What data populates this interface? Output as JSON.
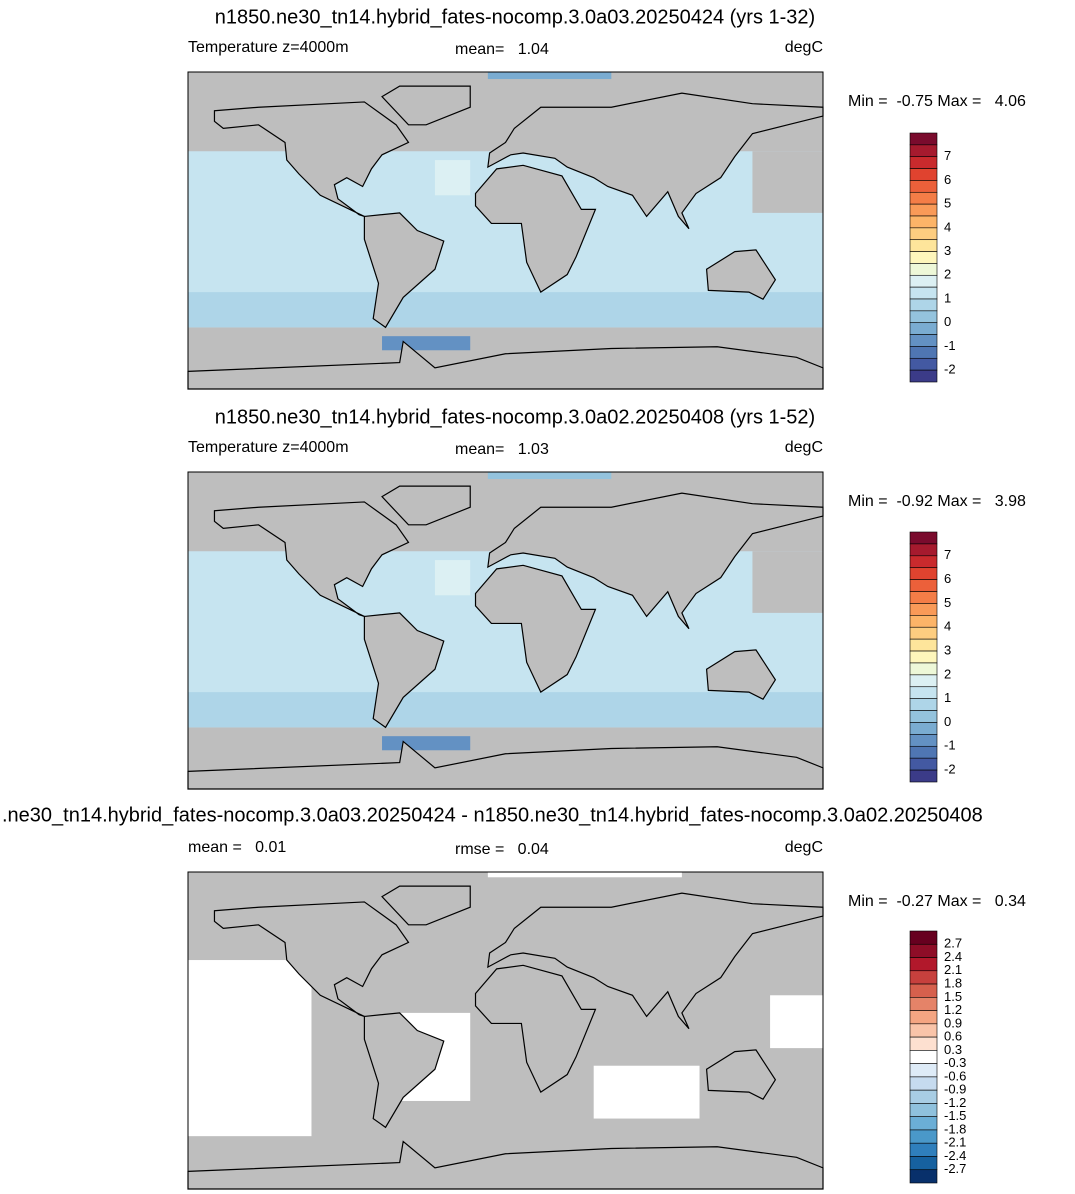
{
  "panels": [
    {
      "title": "n1850.ne30_tn14.hybrid_fates-nocomp.3.0a03.20250424 (yrs 1-32)",
      "left_label": "Temperature z=4000m",
      "center_label": "mean=   1.04",
      "units": "degC",
      "minmax": "Min =  -0.75 Max =   4.06",
      "colorbar": {
        "labels": [
          "7",
          "6",
          "5",
          "4",
          "3",
          "2",
          "1",
          "0",
          "-1",
          "-2"
        ],
        "colors": [
          "#7a0b2d",
          "#a61a2e",
          "#c92a2d",
          "#e0432f",
          "#ec603a",
          "#f47d47",
          "#f99a58",
          "#fcb468",
          "#fdcd80",
          "#fee59b",
          "#fef6bb",
          "#eef8d8",
          "#dcf0f3",
          "#c6e4f0",
          "#aed5e8",
          "#94c3dd",
          "#7aacd1",
          "#6391c3",
          "#4f76b3",
          "#4359a2",
          "#3b3b88"
        ]
      }
    },
    {
      "title": "n1850.ne30_tn14.hybrid_fates-nocomp.3.0a02.20250408 (yrs 1-52)",
      "left_label": "Temperature z=4000m",
      "center_label": "mean=   1.03",
      "units": "degC",
      "minmax": "Min =  -0.92 Max =   3.98",
      "colorbar": {
        "labels": [
          "7",
          "6",
          "5",
          "4",
          "3",
          "2",
          "1",
          "0",
          "-1",
          "-2"
        ],
        "colors": [
          "#7a0b2d",
          "#a61a2e",
          "#c92a2d",
          "#e0432f",
          "#ec603a",
          "#f47d47",
          "#f99a58",
          "#fcb468",
          "#fdcd80",
          "#fee59b",
          "#fef6bb",
          "#eef8d8",
          "#dcf0f3",
          "#c6e4f0",
          "#aed5e8",
          "#94c3dd",
          "#7aacd1",
          "#6391c3",
          "#4f76b3",
          "#4359a2",
          "#3b3b88"
        ]
      }
    },
    {
      "title": ".ne30_tn14.hybrid_fates-nocomp.3.0a03.20250424 - n1850.ne30_tn14.hybrid_fates-nocomp.3.0a02.20250408",
      "left_label": "mean =   0.01",
      "center_label": "rmse =   0.04",
      "units": "degC",
      "minmax": "Min =  -0.27 Max =   0.34",
      "colorbar": {
        "labels": [
          "2.7",
          "2.4",
          "2.1",
          "1.8",
          "1.5",
          "1.2",
          "0.9",
          "0.6",
          "0.3",
          "-0.3",
          "-0.6",
          "-0.9",
          "-1.2",
          "-1.5",
          "-1.8",
          "-2.1",
          "-2.4",
          "-2.7"
        ],
        "colors": [
          "#67001f",
          "#8e0d27",
          "#b2182b",
          "#c7403d",
          "#d6604d",
          "#e58368",
          "#f4a582",
          "#f9c4a9",
          "#fde0d0",
          "#ffffff",
          "#deebf7",
          "#c6dbef",
          "#a8cde4",
          "#8fc1dd",
          "#6baed6",
          "#4a98c9",
          "#2f7fbc",
          "#16619f",
          "#08306b"
        ]
      }
    }
  ]
}
